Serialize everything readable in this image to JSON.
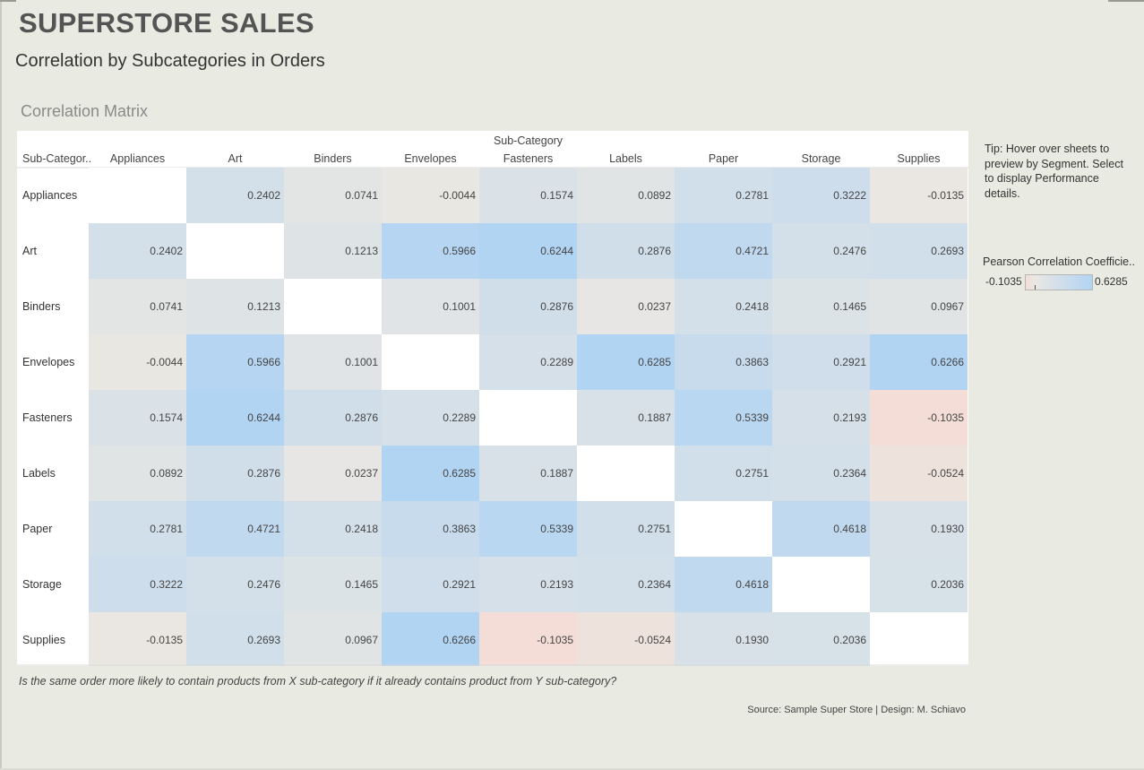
{
  "header": {
    "title": "SUPERSTORE SALES",
    "subtitle": "Correlation by Subcategories in Orders",
    "section_title": "Correlation Matrix"
  },
  "tip": "Tip: Hover over sheets to preview by Segment. Select to display Performance details.",
  "legend": {
    "title": "Pearson Correlation Coefficie..",
    "min_label": "-0.1035",
    "max_label": "0.6285"
  },
  "caption": "Is the same order more likely to contain products from X sub-category if it already contains product from Y sub-category?",
  "source": "Source: Sample Super Store | Design: M. Schiavo",
  "colors": {
    "negative": "#f3ddd6",
    "neutral": "#e9e7e3",
    "positive": "#b2d4f3",
    "diagonal": "#ffffff"
  },
  "chart_data": {
    "type": "heatmap",
    "title": "Correlation Matrix",
    "column_header": "Sub-Category",
    "row_header": "Sub-Categor..",
    "value_range": [
      -0.1035,
      0.6285
    ],
    "categories": [
      "Appliances",
      "Art",
      "Binders",
      "Envelopes",
      "Fasteners",
      "Labels",
      "Paper",
      "Storage",
      "Supplies"
    ],
    "values": [
      [
        null,
        0.2402,
        0.0741,
        -0.0044,
        0.1574,
        0.0892,
        0.2781,
        0.3222,
        -0.0135
      ],
      [
        0.2402,
        null,
        0.1213,
        0.5966,
        0.6244,
        0.2876,
        0.4721,
        0.2476,
        0.2693
      ],
      [
        0.0741,
        0.1213,
        null,
        0.1001,
        0.2876,
        0.0237,
        0.2418,
        0.1465,
        0.0967
      ],
      [
        -0.0044,
        0.5966,
        0.1001,
        null,
        0.2289,
        0.6285,
        0.3863,
        0.2921,
        0.6266
      ],
      [
        0.1574,
        0.6244,
        0.2876,
        0.2289,
        null,
        0.1887,
        0.5339,
        0.2193,
        -0.1035
      ],
      [
        0.0892,
        0.2876,
        0.0237,
        0.6285,
        0.1887,
        null,
        0.2751,
        0.2364,
        -0.0524
      ],
      [
        0.2781,
        0.4721,
        0.2418,
        0.3863,
        0.5339,
        0.2751,
        null,
        0.4618,
        0.193
      ],
      [
        0.3222,
        0.2476,
        0.1465,
        0.2921,
        0.2193,
        0.2364,
        0.4618,
        null,
        0.2036
      ],
      [
        -0.0135,
        0.2693,
        0.0967,
        0.6266,
        -0.1035,
        -0.0524,
        0.193,
        0.2036,
        null
      ]
    ]
  }
}
